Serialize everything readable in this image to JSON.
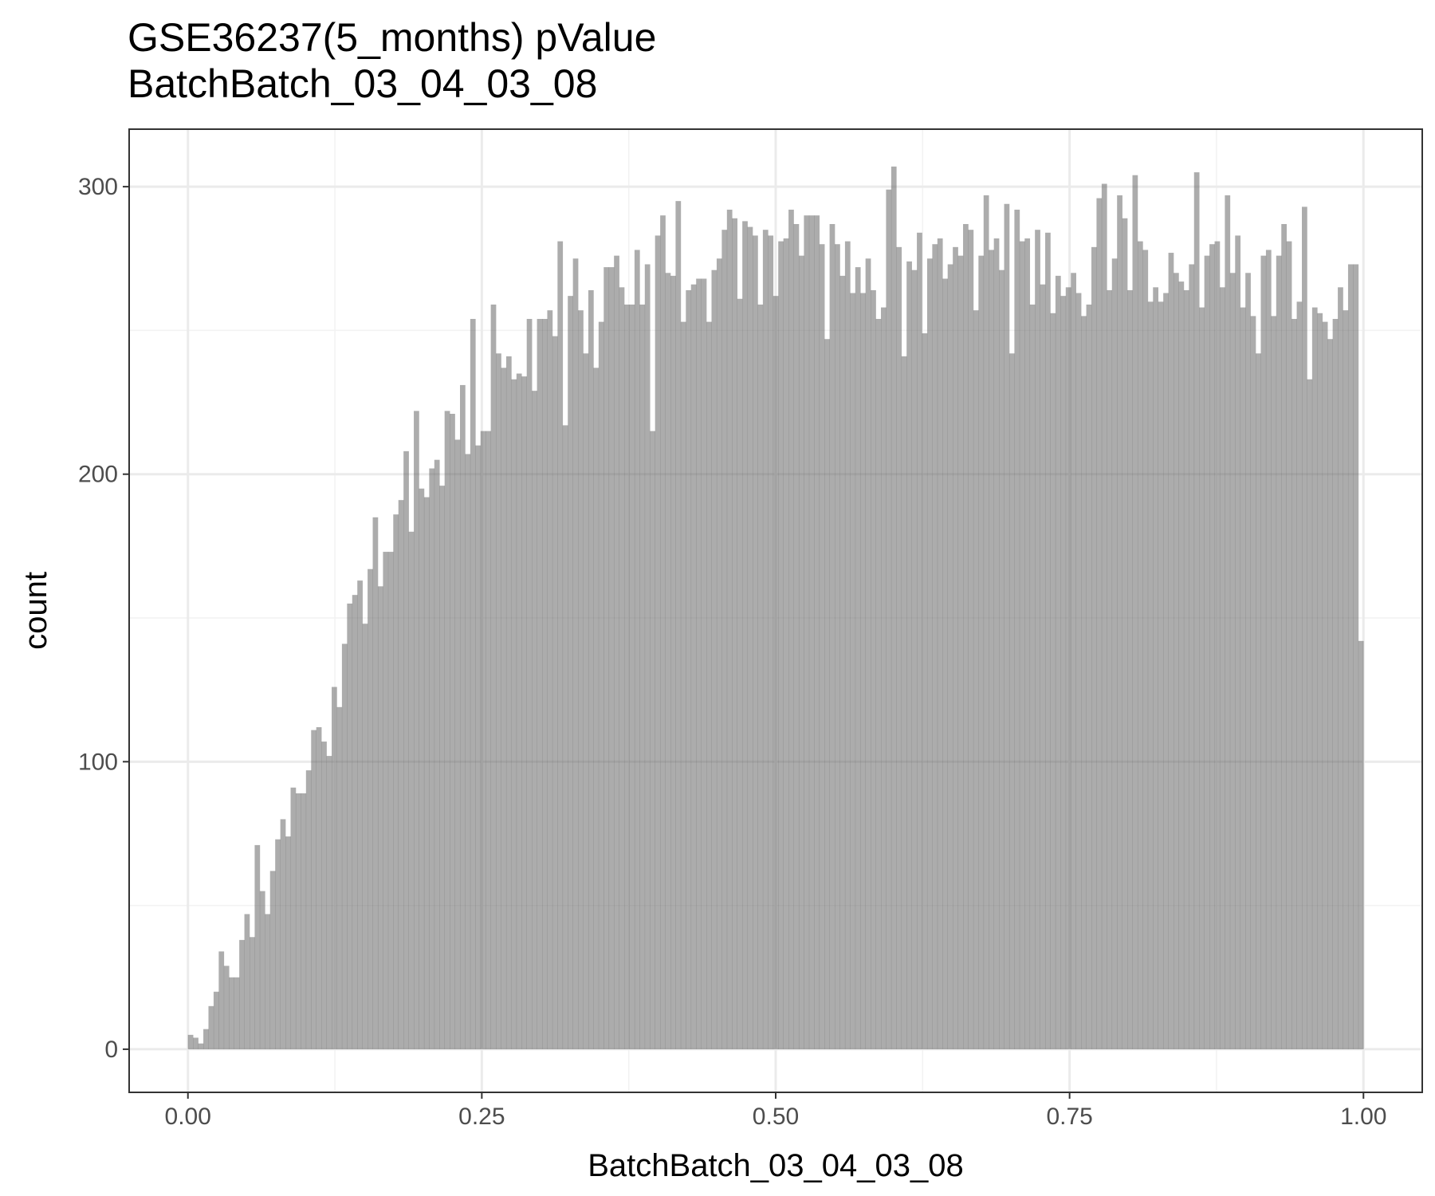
{
  "chart_data": {
    "type": "bar",
    "title": "GSE36237(5_months) pValue",
    "subtitle": "BatchBatch_03_04_03_08",
    "xlabel": "BatchBatch_03_04_03_08",
    "ylabel": "count",
    "xlim": [
      -0.05,
      1.05
    ],
    "ylim": [
      -15,
      320
    ],
    "xticks": [
      0,
      0.25,
      0.5,
      0.75,
      1
    ],
    "xtick_labels": [
      "0.00",
      "0.25",
      "0.50",
      "0.75",
      "1.00"
    ],
    "yticks": [
      0,
      100,
      200,
      300
    ],
    "ytick_labels": [
      "0",
      "100",
      "200",
      "300"
    ],
    "grid": true,
    "bin_range": [
      0,
      1
    ],
    "values": [
      5,
      4,
      2,
      7,
      15,
      20,
      34,
      29,
      25,
      25,
      38,
      47,
      39,
      71,
      55,
      47,
      62,
      73,
      80,
      74,
      91,
      89,
      89,
      97,
      111,
      112,
      107,
      102,
      126,
      119,
      141,
      155,
      158,
      163,
      148,
      167,
      185,
      161,
      173,
      173,
      186,
      191,
      208,
      180,
      222,
      195,
      192,
      202,
      205,
      196,
      222,
      221,
      212,
      231,
      207,
      254,
      210,
      215,
      215,
      259,
      242,
      237,
      241,
      233,
      235,
      234,
      254,
      229,
      254,
      254,
      257,
      248,
      281,
      217,
      262,
      275,
      257,
      242,
      264,
      237,
      253,
      272,
      272,
      276,
      265,
      259,
      259,
      278,
      259,
      273,
      215,
      283,
      290,
      270,
      269,
      295,
      253,
      264,
      266,
      268,
      268,
      253,
      271,
      275,
      285,
      292,
      289,
      261,
      288,
      286,
      283,
      259,
      285,
      283,
      262,
      281,
      282,
      292,
      287,
      276,
      290,
      290,
      290,
      280,
      247,
      287,
      280,
      269,
      281,
      263,
      272,
      263,
      275,
      264,
      254,
      258,
      299,
      307,
      279,
      241,
      274,
      271,
      284,
      249,
      275,
      280,
      282,
      268,
      273,
      279,
      276,
      287,
      285,
      257,
      276,
      297,
      278,
      282,
      271,
      294,
      242,
      292,
      281,
      282,
      259,
      285,
      266,
      284,
      256,
      269,
      262,
      265,
      270,
      263,
      255,
      259,
      279,
      296,
      301,
      264,
      275,
      297,
      289,
      264,
      304,
      281,
      278,
      260,
      265,
      260,
      263,
      277,
      270,
      267,
      264,
      273,
      305,
      258,
      276,
      280,
      281,
      265,
      297,
      270,
      283,
      258,
      270,
      255,
      242,
      276,
      278,
      255,
      276,
      287,
      281,
      254,
      260,
      293,
      233,
      258,
      256,
      253,
      247,
      254,
      265,
      257,
      273,
      273,
      142
    ]
  }
}
